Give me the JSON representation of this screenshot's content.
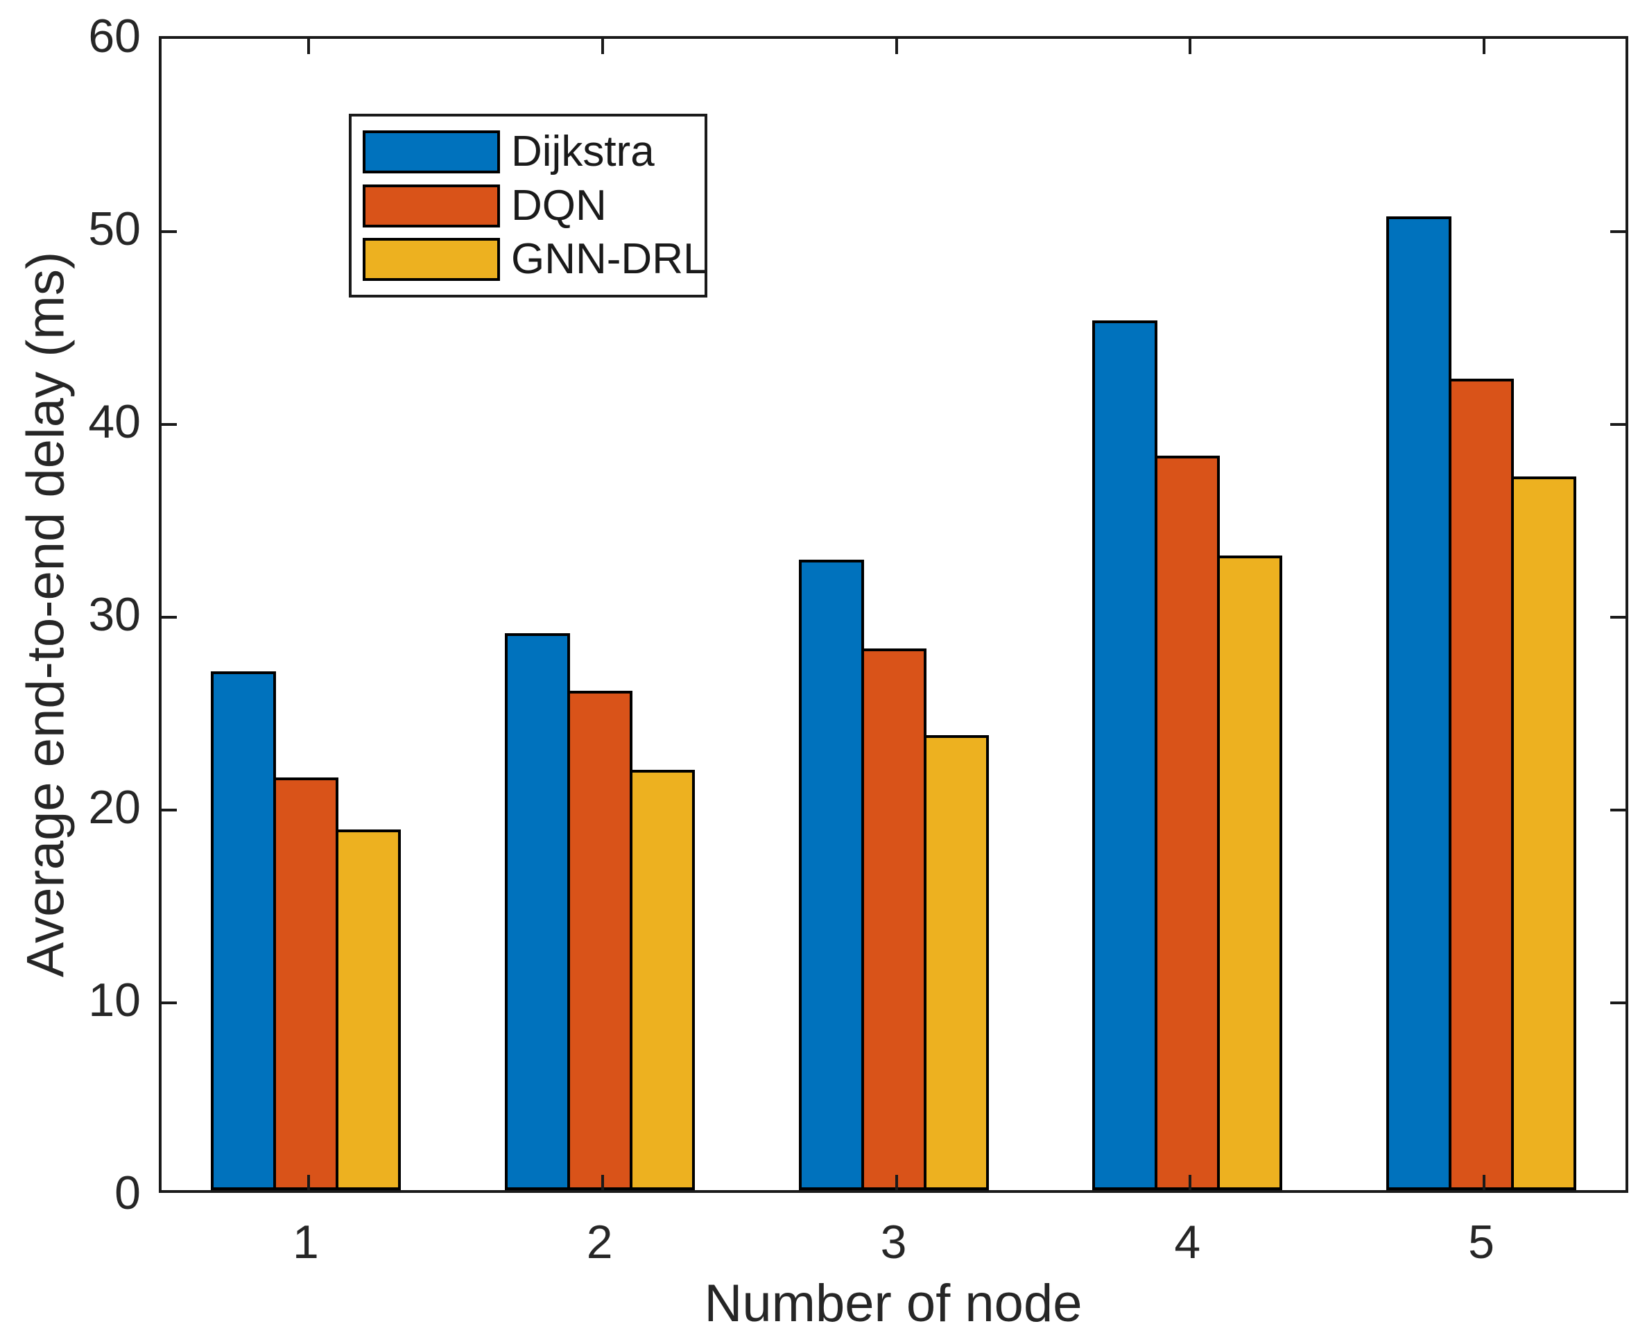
{
  "chart_data": {
    "type": "bar",
    "title": "",
    "xlabel": "Number of node",
    "ylabel": "Average end-to-end delay (ms)",
    "categories": [
      "1",
      "2",
      "3",
      "4",
      "5"
    ],
    "series": [
      {
        "name": "Dijkstra",
        "color": "#0072BD",
        "values": [
          26.9,
          28.9,
          32.7,
          45.1,
          50.5
        ]
      },
      {
        "name": "DQN",
        "color": "#D95319",
        "values": [
          21.4,
          25.9,
          28.1,
          38.1,
          42.1
        ]
      },
      {
        "name": "GNN-DRL",
        "color": "#EDB120",
        "values": [
          18.7,
          21.8,
          23.6,
          32.9,
          37.0
        ]
      }
    ],
    "ylim": [
      0,
      60
    ],
    "yticks": [
      0,
      10,
      20,
      30,
      40,
      50,
      60
    ],
    "grid": false,
    "bar_outline_color": "#000000",
    "axis_color": "#262626",
    "legend_position": "top-left"
  }
}
